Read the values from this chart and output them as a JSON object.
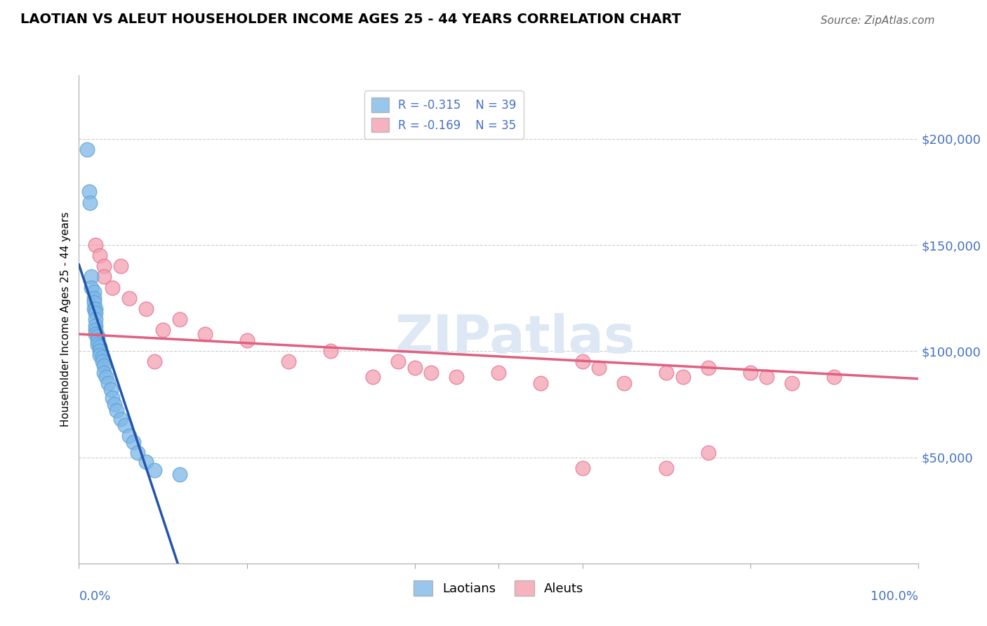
{
  "title": "LAOTIAN VS ALEUT HOUSEHOLDER INCOME AGES 25 - 44 YEARS CORRELATION CHART",
  "source": "Source: ZipAtlas.com",
  "ylabel": "Householder Income Ages 25 - 44 years",
  "xlim": [
    0.0,
    1.0
  ],
  "ylim": [
    0,
    230000
  ],
  "yticks": [
    50000,
    100000,
    150000,
    200000
  ],
  "ytick_labels": [
    "$50,000",
    "$100,000",
    "$150,000",
    "$200,000"
  ],
  "grid_color": "#cccccc",
  "background_color": "#ffffff",
  "laotian_color": "#7EB8E8",
  "laotian_edge": "#5a9fd4",
  "aleut_color": "#F4A0B0",
  "aleut_edge": "#e07090",
  "laotian_R": -0.315,
  "laotian_N": 39,
  "aleut_R": -0.169,
  "aleut_N": 35,
  "watermark": "ZIPatlas",
  "laotian_line_color": "#2255aa",
  "laotian_dash_color": "#aaccee",
  "aleut_line_color": "#e06080",
  "laotian_x": [
    0.01,
    0.012,
    0.013,
    0.015,
    0.015,
    0.018,
    0.018,
    0.018,
    0.018,
    0.02,
    0.02,
    0.02,
    0.02,
    0.02,
    0.02,
    0.022,
    0.022,
    0.022,
    0.025,
    0.025,
    0.025,
    0.028,
    0.028,
    0.03,
    0.03,
    0.032,
    0.035,
    0.038,
    0.04,
    0.042,
    0.045,
    0.05,
    0.055,
    0.06,
    0.065,
    0.07,
    0.08,
    0.09,
    0.12
  ],
  "laotian_y": [
    195000,
    175000,
    170000,
    135000,
    130000,
    128000,
    125000,
    123000,
    120000,
    120000,
    118000,
    115000,
    112000,
    110000,
    108000,
    107000,
    105000,
    103000,
    102000,
    100000,
    98000,
    97000,
    95000,
    93000,
    90000,
    88000,
    85000,
    82000,
    78000,
    75000,
    72000,
    68000,
    65000,
    60000,
    57000,
    52000,
    48000,
    44000,
    42000
  ],
  "aleut_x": [
    0.02,
    0.025,
    0.03,
    0.03,
    0.04,
    0.05,
    0.06,
    0.08,
    0.09,
    0.1,
    0.12,
    0.15,
    0.2,
    0.25,
    0.3,
    0.35,
    0.38,
    0.4,
    0.42,
    0.45,
    0.5,
    0.55,
    0.6,
    0.62,
    0.65,
    0.7,
    0.72,
    0.75,
    0.8,
    0.82,
    0.85,
    0.9,
    0.6,
    0.7,
    0.75
  ],
  "aleut_y": [
    150000,
    145000,
    140000,
    135000,
    130000,
    140000,
    125000,
    120000,
    95000,
    110000,
    115000,
    108000,
    105000,
    95000,
    100000,
    88000,
    95000,
    92000,
    90000,
    88000,
    90000,
    85000,
    95000,
    92000,
    85000,
    90000,
    88000,
    52000,
    90000,
    88000,
    85000,
    88000,
    45000,
    45000,
    92000
  ]
}
